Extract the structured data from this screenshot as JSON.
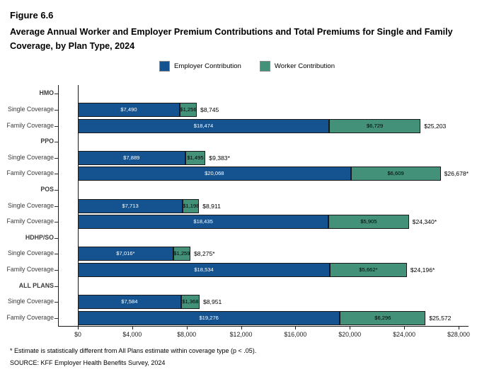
{
  "figure_label": "Figure 6.6",
  "title": "Average Annual Worker and Employer Premium Contributions and Total Premiums for Single and Family Coverage, by Plan Type, 2024",
  "legend": {
    "items": [
      {
        "label": "Employer Contribution",
        "color": "#14538F"
      },
      {
        "label": "Worker Contribution",
        "color": "#44917A"
      }
    ]
  },
  "footnote": "* Estimate is statistically different from All Plans estimate within coverage type (p < .05).",
  "source": "SOURCE: KFF Employer Health Benefits Survey, 2024",
  "colors": {
    "employer": "#14538F",
    "worker": "#44917A",
    "bar_border": "#1a1a1a",
    "axis": "#1a1a1a",
    "label_text": "#3b3b3b"
  },
  "chart_data": {
    "type": "bar",
    "orientation": "horizontal",
    "stacked": true,
    "xlim": [
      0,
      28000
    ],
    "x_tick_values": [
      0,
      4000,
      8000,
      12000,
      16000,
      20000,
      24000,
      28000
    ],
    "x_tick_labels": [
      "$0",
      "$4,000",
      "$8,000",
      "$12,000",
      "$16,000",
      "$20,000",
      "$24,000",
      "$28,000"
    ],
    "series_names": [
      "Employer Contribution",
      "Worker Contribution"
    ],
    "legend_position": "top",
    "grid": false,
    "groups": [
      {
        "plan": "HMO",
        "rows": [
          {
            "label": "Single Coverage",
            "employer": 7490,
            "employer_label": "$7,490",
            "worker": 1256,
            "worker_label": "$1,256",
            "total": 8745,
            "total_label": "$8,745"
          },
          {
            "label": "Family Coverage",
            "employer": 18474,
            "employer_label": "$18,474",
            "worker": 6729,
            "worker_label": "$6,729",
            "total": 25203,
            "total_label": "$25,203"
          }
        ]
      },
      {
        "plan": "PPO",
        "rows": [
          {
            "label": "Single Coverage",
            "employer": 7889,
            "employer_label": "$7,889",
            "worker": 1495,
            "worker_label": "$1,495",
            "total": 9383,
            "total_label": "$9,383*"
          },
          {
            "label": "Family Coverage",
            "employer": 20068,
            "employer_label": "$20,068",
            "worker": 6609,
            "worker_label": "$6,609",
            "total": 26678,
            "total_label": "$26,678*"
          }
        ]
      },
      {
        "plan": "POS",
        "rows": [
          {
            "label": "Single Coverage",
            "employer": 7713,
            "employer_label": "$7,713",
            "worker": 1198,
            "worker_label": "$1,198",
            "total": 8911,
            "total_label": "$8,911"
          },
          {
            "label": "Family Coverage",
            "employer": 18435,
            "employer_label": "$18,435",
            "worker": 5905,
            "worker_label": "$5,905",
            "total": 24340,
            "total_label": "$24,340*"
          }
        ]
      },
      {
        "plan": "HDHP/SO",
        "rows": [
          {
            "label": "Single Coverage",
            "employer": 7016,
            "employer_label": "$7,016*",
            "worker": 1259,
            "worker_label": "$1,259",
            "total": 8275,
            "total_label": "$8,275*"
          },
          {
            "label": "Family Coverage",
            "employer": 18534,
            "employer_label": "$18,534",
            "worker": 5662,
            "worker_label": "$5,662*",
            "total": 24196,
            "total_label": "$24,196*"
          }
        ]
      },
      {
        "plan": "ALL PLANS",
        "rows": [
          {
            "label": "Single Coverage",
            "employer": 7584,
            "employer_label": "$7,584",
            "worker": 1368,
            "worker_label": "$1,368",
            "total": 8951,
            "total_label": "$8,951"
          },
          {
            "label": "Family Coverage",
            "employer": 19276,
            "employer_label": "$19,276",
            "worker": 6296,
            "worker_label": "$6,296",
            "total": 25572,
            "total_label": "$25,572"
          }
        ]
      }
    ]
  }
}
